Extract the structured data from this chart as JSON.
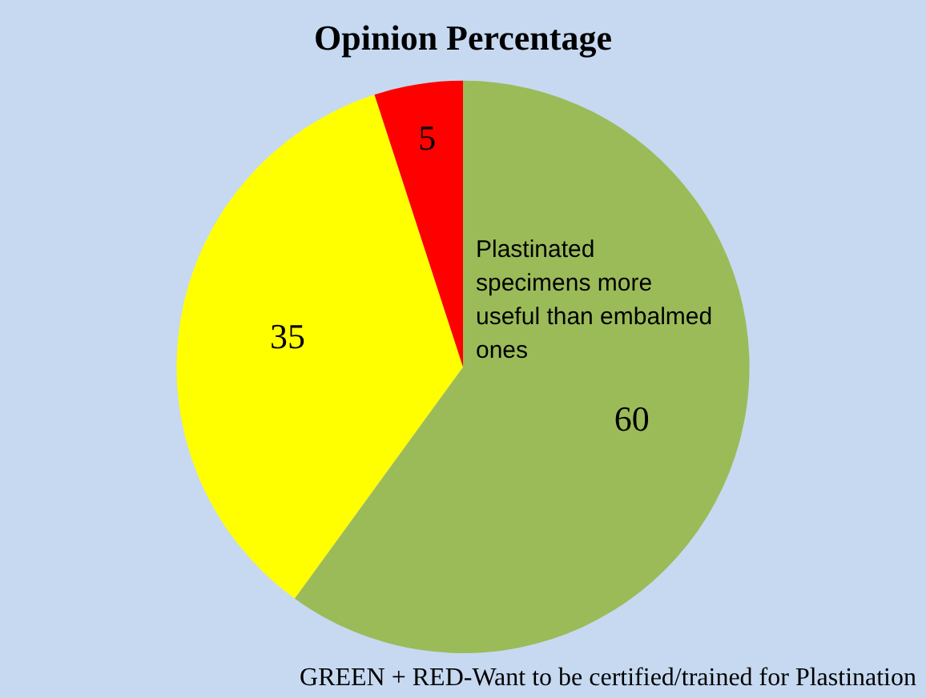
{
  "chart_data": {
    "type": "pie",
    "title": "Opinion Percentage",
    "categories": [
      null,
      null,
      null
    ],
    "values": [
      60,
      35,
      5
    ],
    "colors": [
      "#9bbb59",
      "#ffff00",
      "#ff0000"
    ],
    "data_labels": true,
    "legend": false,
    "annotations": [
      "Plastinated specimens more useful than embalmed ones",
      "GREEN + RED-Want to be certified/trained for Plastination"
    ]
  }
}
